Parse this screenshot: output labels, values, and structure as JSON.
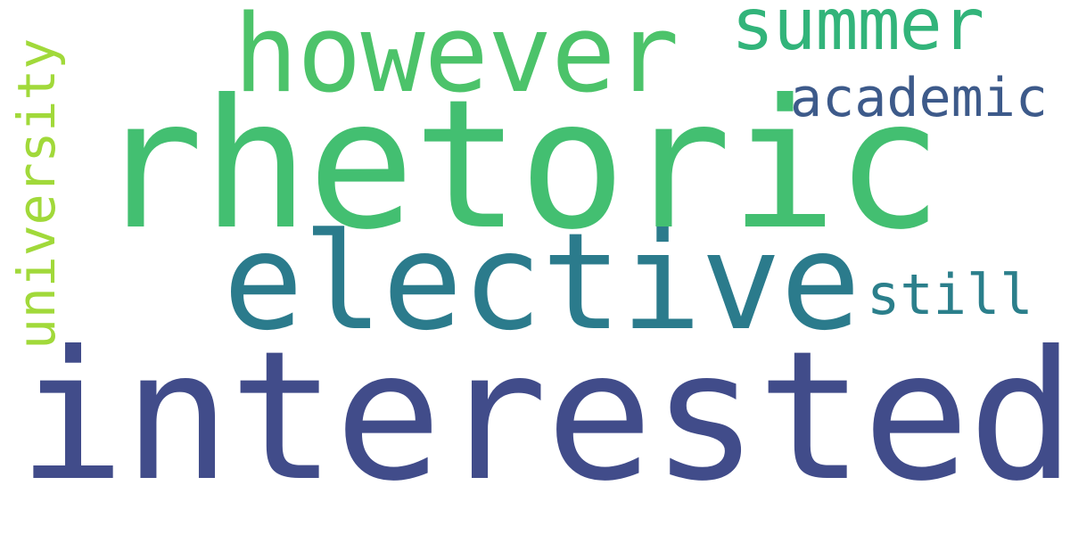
{
  "words": [
    {
      "text": "interested",
      "color": "#414c8a"
    },
    {
      "text": "rhetoric",
      "color": "#43bf71"
    },
    {
      "text": "elective",
      "color": "#2b7b8c"
    },
    {
      "text": "however",
      "color": "#4cc36a"
    },
    {
      "text": "summer",
      "color": "#32b47a"
    },
    {
      "text": "academic",
      "color": "#3d5a8a"
    },
    {
      "text": "still",
      "color": "#2b7f8b"
    },
    {
      "text": "university",
      "color": "#a1d93a"
    }
  ]
}
